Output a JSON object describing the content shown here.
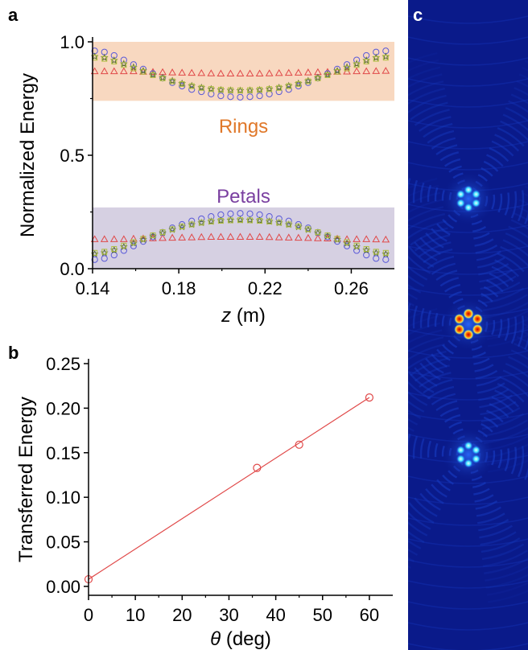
{
  "colors": {
    "rings_band": "#f8d8c0",
    "petals_band": "#d6d0e2",
    "rings_label": "#e0782a",
    "petals_label": "#7a3fa0",
    "triangle": "#e04848",
    "circle": "#5a5ad8",
    "star": "#556b2f",
    "square": "#b0c040",
    "fit_line": "#e04848",
    "beam_bg": "#0a1a8a"
  },
  "chart_data": [
    {
      "panel": "a",
      "type": "scatter",
      "xlabel_italic": "z",
      "xlabel_unit": " (m)",
      "ylabel": "Normalized Energy",
      "xlim": [
        0.14,
        0.28
      ],
      "ylim": [
        0.0,
        1.0
      ],
      "x_ticks": [
        "0.14",
        "0.18",
        "0.22",
        "0.26"
      ],
      "x_tick_values": [
        0.14,
        0.18,
        0.22,
        0.26
      ],
      "y_ticks": [
        "0.0",
        "0.5",
        "1.0"
      ],
      "y_tick_values": [
        0.0,
        0.5,
        1.0
      ],
      "bands": [
        {
          "label": "Rings",
          "ymin": 0.74,
          "ymax": 1.0
        },
        {
          "label": "Petals",
          "ymin": 0.0,
          "ymax": 0.27
        }
      ],
      "x": [
        0.141,
        0.1455,
        0.15,
        0.1545,
        0.159,
        0.1635,
        0.168,
        0.1725,
        0.177,
        0.1815,
        0.186,
        0.1905,
        0.195,
        0.1995,
        0.204,
        0.2085,
        0.213,
        0.2175,
        0.222,
        0.2265,
        0.231,
        0.2355,
        0.24,
        0.2445,
        0.249,
        0.2535,
        0.258,
        0.2625,
        0.267,
        0.2715,
        0.276
      ],
      "series": [
        {
          "marker": "triangle",
          "group": "rings",
          "values": [
            0.87,
            0.87,
            0.87,
            0.87,
            0.87,
            0.868,
            0.867,
            0.866,
            0.865,
            0.864,
            0.863,
            0.862,
            0.861,
            0.86,
            0.86,
            0.86,
            0.86,
            0.86,
            0.861,
            0.862,
            0.863,
            0.864,
            0.865,
            0.866,
            0.867,
            0.868,
            0.869,
            0.87,
            0.87,
            0.871,
            0.872
          ]
        },
        {
          "marker": "triangle",
          "group": "petals",
          "values": [
            0.13,
            0.13,
            0.13,
            0.13,
            0.132,
            0.133,
            0.134,
            0.135,
            0.136,
            0.137,
            0.138,
            0.139,
            0.14,
            0.14,
            0.14,
            0.14,
            0.14,
            0.14,
            0.139,
            0.138,
            0.137,
            0.136,
            0.135,
            0.134,
            0.133,
            0.132,
            0.13,
            0.13,
            0.13,
            0.129,
            0.128
          ]
        },
        {
          "marker": "circle",
          "group": "rings",
          "values": [
            0.96,
            0.955,
            0.94,
            0.92,
            0.9,
            0.88,
            0.86,
            0.84,
            0.82,
            0.805,
            0.79,
            0.78,
            0.77,
            0.762,
            0.758,
            0.756,
            0.758,
            0.762,
            0.77,
            0.78,
            0.79,
            0.805,
            0.82,
            0.84,
            0.86,
            0.88,
            0.9,
            0.92,
            0.94,
            0.955,
            0.96
          ]
        },
        {
          "marker": "circle",
          "group": "petals",
          "values": [
            0.04,
            0.045,
            0.06,
            0.08,
            0.1,
            0.12,
            0.14,
            0.16,
            0.18,
            0.195,
            0.21,
            0.22,
            0.23,
            0.238,
            0.242,
            0.244,
            0.242,
            0.238,
            0.23,
            0.22,
            0.21,
            0.195,
            0.18,
            0.16,
            0.14,
            0.12,
            0.1,
            0.08,
            0.06,
            0.045,
            0.04
          ]
        },
        {
          "marker": "star",
          "group": "rings",
          "values": [
            0.935,
            0.93,
            0.918,
            0.903,
            0.888,
            0.872,
            0.856,
            0.842,
            0.828,
            0.816,
            0.806,
            0.798,
            0.792,
            0.788,
            0.786,
            0.785,
            0.786,
            0.788,
            0.792,
            0.798,
            0.806,
            0.816,
            0.828,
            0.842,
            0.856,
            0.872,
            0.888,
            0.903,
            0.918,
            0.93,
            0.935
          ]
        },
        {
          "marker": "star",
          "group": "petals",
          "values": [
            0.065,
            0.07,
            0.082,
            0.097,
            0.112,
            0.128,
            0.144,
            0.158,
            0.172,
            0.184,
            0.194,
            0.202,
            0.208,
            0.212,
            0.214,
            0.215,
            0.214,
            0.212,
            0.208,
            0.202,
            0.194,
            0.184,
            0.172,
            0.158,
            0.144,
            0.128,
            0.112,
            0.097,
            0.082,
            0.07,
            0.065
          ]
        },
        {
          "marker": "square",
          "group": "rings",
          "values": [
            0.93,
            0.925,
            0.913,
            0.898,
            0.883,
            0.868,
            0.853,
            0.839,
            0.826,
            0.814,
            0.805,
            0.797,
            0.792,
            0.789,
            0.787,
            0.786,
            0.787,
            0.789,
            0.792,
            0.797,
            0.805,
            0.814,
            0.826,
            0.839,
            0.853,
            0.868,
            0.883,
            0.898,
            0.913,
            0.925,
            0.93
          ]
        },
        {
          "marker": "square",
          "group": "petals",
          "values": [
            0.07,
            0.075,
            0.087,
            0.102,
            0.117,
            0.132,
            0.147,
            0.161,
            0.174,
            0.186,
            0.195,
            0.203,
            0.208,
            0.211,
            0.213,
            0.214,
            0.213,
            0.211,
            0.208,
            0.203,
            0.195,
            0.186,
            0.174,
            0.161,
            0.147,
            0.132,
            0.117,
            0.102,
            0.087,
            0.075,
            0.07
          ]
        }
      ]
    },
    {
      "panel": "b",
      "type": "scatter",
      "xlabel_italic": "θ",
      "xlabel_unit": " (deg)",
      "ylabel": "Transferred Energy",
      "xlim": [
        0,
        65
      ],
      "ylim": [
        -0.01,
        0.25
      ],
      "x_ticks": [
        "0",
        "10",
        "20",
        "30",
        "40",
        "50",
        "60"
      ],
      "x_tick_values": [
        0,
        10,
        20,
        30,
        40,
        50,
        60
      ],
      "y_ticks": [
        "0.00",
        "0.05",
        "0.10",
        "0.15",
        "0.20",
        "0.25"
      ],
      "y_tick_values": [
        0.0,
        0.05,
        0.1,
        0.15,
        0.2,
        0.25
      ],
      "points": [
        {
          "x": 0,
          "y": 0.008
        },
        {
          "x": 36,
          "y": 0.133
        },
        {
          "x": 45,
          "y": 0.159
        },
        {
          "x": 60,
          "y": 0.212
        }
      ],
      "fit": {
        "x": [
          0,
          60
        ],
        "y": [
          0.008,
          0.212
        ]
      }
    }
  ],
  "panel_a": {
    "label": "a",
    "band_rings": "Rings",
    "band_petals": "Petals"
  },
  "panel_b": {
    "label": "b"
  },
  "panel_c": {
    "label": "c"
  }
}
